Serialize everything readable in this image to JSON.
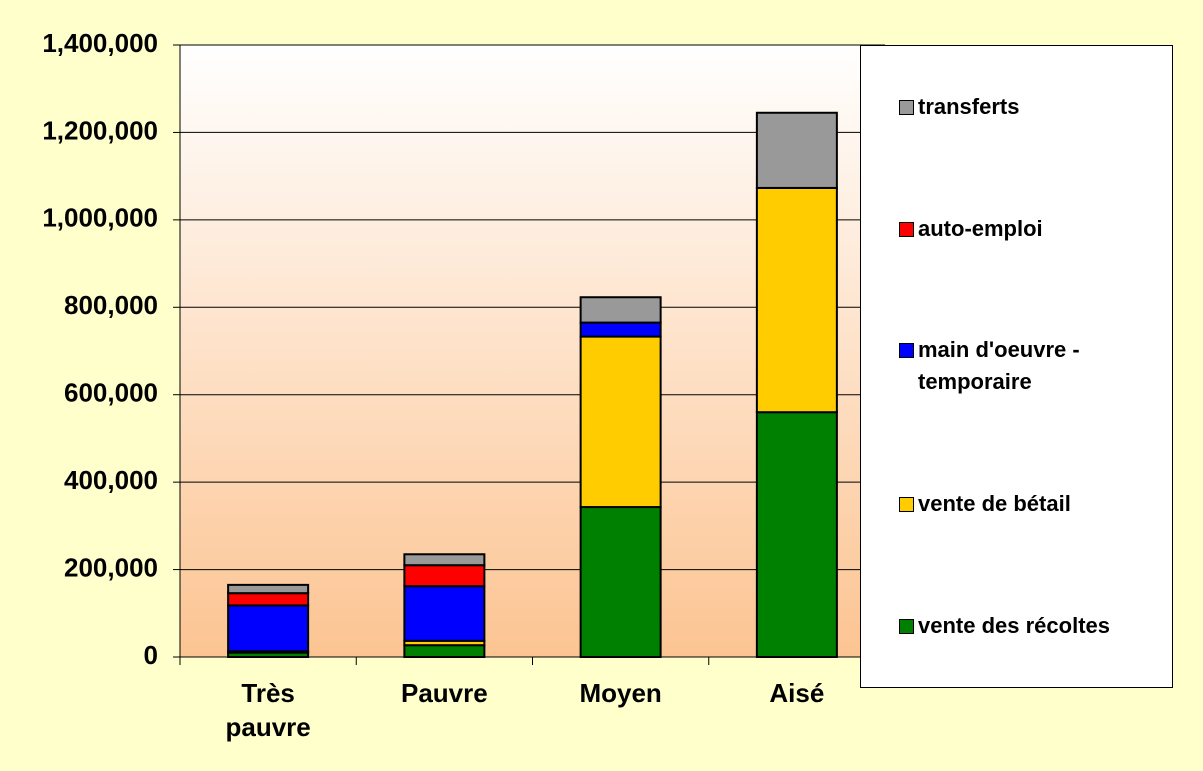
{
  "chart_data": {
    "type": "stacked_bar",
    "categories": [
      "Très pauvre",
      "Pauvre",
      "Moyen",
      "Aisé"
    ],
    "series": [
      {
        "name": "vente des récoltes",
        "color": "#008000",
        "values": [
          10000,
          27000,
          343000,
          560000
        ]
      },
      {
        "name": "vente de bétail",
        "color": "#ffcc00",
        "values": [
          3000,
          10000,
          390000,
          513000
        ]
      },
      {
        "name": "main d'oeuvre - temporaire",
        "color": "#0000ff",
        "values": [
          105000,
          125000,
          32000,
          0
        ]
      },
      {
        "name": "auto-emploi",
        "color": "#ff0000",
        "values": [
          28000,
          48000,
          0,
          0
        ]
      },
      {
        "name": "transferts",
        "color": "#999999",
        "values": [
          19000,
          25000,
          58000,
          172000
        ]
      }
    ],
    "ylim": [
      0,
      1400000
    ],
    "yticks": [
      0,
      {
        "value": 200000,
        "label": "200,000"
      },
      {
        "value": 400000,
        "label": "400,000"
      },
      {
        "value": 600000,
        "label": "600,000"
      },
      {
        "value": 800000,
        "label": "800,000"
      },
      {
        "value": 1000000,
        "label": "1,000,000"
      },
      {
        "value": 1200000,
        "label": "1,200,000"
      },
      {
        "value": 1400000,
        "label": "1,400,000"
      }
    ],
    "grid": true
  }
}
